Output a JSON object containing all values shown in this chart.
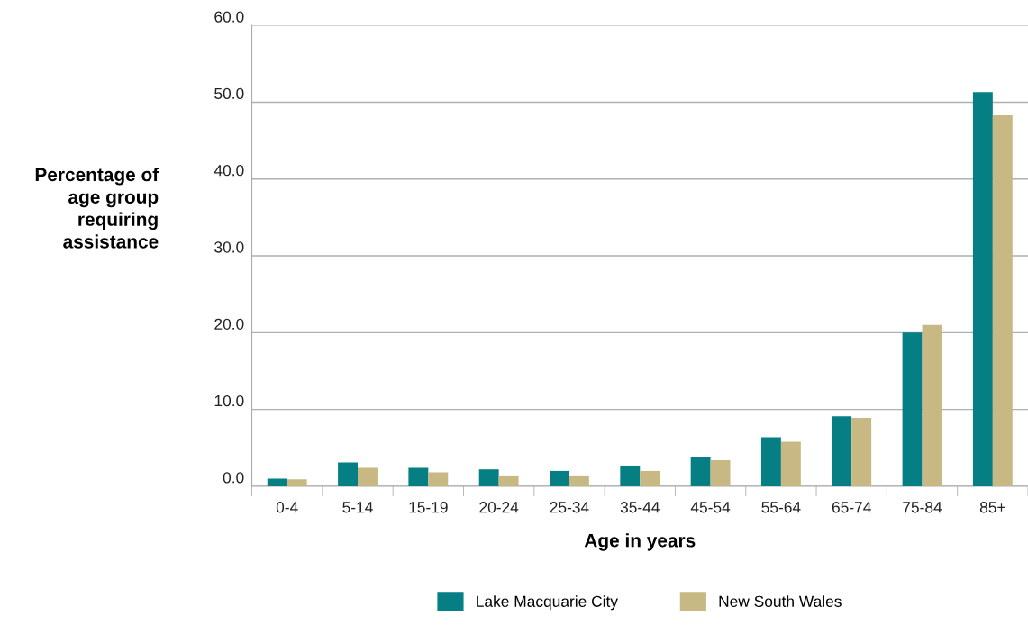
{
  "chart_data": {
    "type": "bar",
    "xlabel": "Age in years",
    "ylabel": "Percentage of\nage group\nrequiring\nassistance",
    "categories": [
      "0-4",
      "5-14",
      "15-19",
      "20-24",
      "25-34",
      "35-44",
      "45-54",
      "55-64",
      "65-74",
      "75-84",
      "85+"
    ],
    "series": [
      {
        "name": "Lake Macquarie City",
        "color": "#067f84",
        "values": [
          1.0,
          3.1,
          2.4,
          2.2,
          2.0,
          2.7,
          3.8,
          6.4,
          9.1,
          20.0,
          51.3
        ]
      },
      {
        "name": "New South Wales",
        "color": "#c8b883",
        "values": [
          0.9,
          2.4,
          1.8,
          1.3,
          1.3,
          2.0,
          3.4,
          5.8,
          8.9,
          21.0,
          48.3
        ]
      }
    ],
    "ylim": [
      0,
      60
    ],
    "yticks": [
      {
        "value": 0,
        "label": "0.0"
      },
      {
        "value": 10,
        "label": "10.0"
      },
      {
        "value": 20,
        "label": "20.0"
      },
      {
        "value": 30,
        "label": "30.0"
      },
      {
        "value": 40,
        "label": "40.0"
      },
      {
        "value": 50,
        "label": "50.0"
      },
      {
        "value": 60,
        "label": "60.0"
      }
    ],
    "grid": "y",
    "legend": "bottom"
  }
}
